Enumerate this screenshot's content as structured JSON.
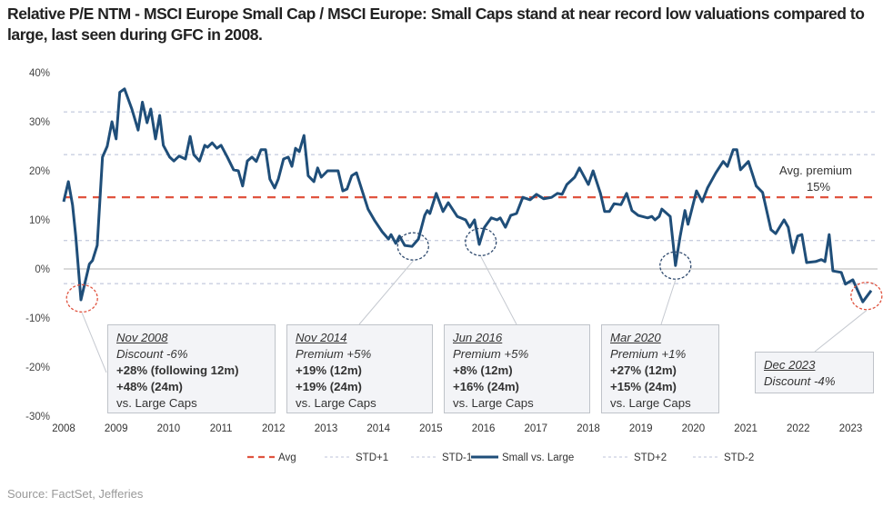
{
  "title": "Relative P/E NTM - MSCI Europe Small Cap / MSCI Europe: Small Caps stand at near record low valuations compared to large, last seen during GFC in 2008.",
  "source": "Source: FactSet, Jefferies",
  "colors": {
    "line": "#1f4e79",
    "avg": "#e0533f",
    "std": "#c9cfe0",
    "zero": "#b5b5b5",
    "circle_red": "#e0533f",
    "circle_navy": "#2f4a6e"
  },
  "annotations": [
    {
      "date": "Nov 2008",
      "level": "Discount -6%",
      "l1": "+28% (following 12m)",
      "l2": "+48% (24m)",
      "l3": "vs. Large Caps"
    },
    {
      "date": "Nov 2014",
      "level": "Premium +5%",
      "l1": "+19% (12m)",
      "l2": "+19% (24m)",
      "l3": "vs. Large Caps"
    },
    {
      "date": "Jun 2016",
      "level": "Premium +5%",
      "l1": "+8% (12m)",
      "l2": "+16% (24m)",
      "l3": "vs. Large Caps"
    },
    {
      "date": "Mar 2020",
      "level": "Premium +1%",
      "l1": "+27% (12m)",
      "l2": "+15% (24m)",
      "l3": "vs. Large Caps"
    },
    {
      "date": "Dec 2023",
      "level": "Discount -4%"
    }
  ],
  "chart_data": {
    "type": "line",
    "title": "Relative P/E NTM - MSCI Europe Small Cap / MSCI Europe",
    "xlabel": "",
    "ylabel": "",
    "xlim": [
      2008,
      2023.6
    ],
    "ylim": [
      -30,
      40
    ],
    "x_ticks": [
      "2008",
      "2009",
      "2010",
      "2011",
      "2012",
      "2013",
      "2014",
      "2015",
      "2016",
      "2017",
      "2018",
      "2019",
      "2020",
      "2021",
      "2022",
      "2023"
    ],
    "y_ticks": [
      "40%",
      "30%",
      "20%",
      "10%",
      "0%",
      "-10%",
      "-20%",
      "-30%"
    ],
    "y_tick_values": [
      40,
      30,
      20,
      10,
      0,
      -10,
      -20,
      -30
    ],
    "avg_label": "Avg. premium",
    "avg_value_label": "15%",
    "reference_lines": [
      {
        "name": "Avg",
        "value": 14.6
      },
      {
        "name": "STD+1",
        "value": 23.3
      },
      {
        "name": "STD-1",
        "value": 5.8
      },
      {
        "name": "STD+2",
        "value": 32.0
      },
      {
        "name": "STD-2",
        "value": -3.0
      }
    ],
    "legend": [
      "Avg",
      "STD+1",
      "STD-1",
      "Small vs. Large",
      "STD+2",
      "STD-2"
    ],
    "legend_placement": "bottom",
    "highlights": [
      {
        "x": 2008.35,
        "y": -6,
        "color": "red"
      },
      {
        "x": 2014.66,
        "y": 4.6,
        "color": "navy"
      },
      {
        "x": 2015.95,
        "y": 5.5,
        "color": "navy"
      },
      {
        "x": 2019.66,
        "y": 0.7,
        "color": "navy"
      },
      {
        "x": 2023.3,
        "y": -5.5,
        "color": "red"
      }
    ],
    "series": [
      {
        "name": "Small vs. Large",
        "x": [
          2008.0,
          2008.09,
          2008.17,
          2008.23,
          2008.33,
          2008.49,
          2008.55,
          2008.64,
          2008.74,
          2008.83,
          2008.92,
          2009.0,
          2009.07,
          2009.16,
          2009.3,
          2009.42,
          2009.5,
          2009.59,
          2009.66,
          2009.75,
          2009.83,
          2009.9,
          2010.02,
          2010.1,
          2010.2,
          2010.32,
          2010.41,
          2010.48,
          2010.59,
          2010.69,
          2010.74,
          2010.83,
          2010.92,
          2011.0,
          2011.12,
          2011.24,
          2011.33,
          2011.41,
          2011.5,
          2011.59,
          2011.67,
          2011.76,
          2011.85,
          2011.93,
          2012.02,
          2012.09,
          2012.19,
          2012.28,
          2012.35,
          2012.42,
          2012.49,
          2012.58,
          2012.66,
          2012.77,
          2012.84,
          2012.91,
          2013.03,
          2013.23,
          2013.32,
          2013.4,
          2013.49,
          2013.58,
          2013.69,
          2013.8,
          2013.93,
          2014.07,
          2014.19,
          2014.24,
          2014.33,
          2014.4,
          2014.5,
          2014.64,
          2014.76,
          2014.88,
          2014.93,
          2014.98,
          2015.1,
          2015.23,
          2015.33,
          2015.5,
          2015.66,
          2015.74,
          2015.83,
          2015.92,
          2016.02,
          2016.15,
          2016.26,
          2016.32,
          2016.42,
          2016.52,
          2016.63,
          2016.75,
          2016.89,
          2017.01,
          2017.15,
          2017.3,
          2017.41,
          2017.5,
          2017.59,
          2017.74,
          2017.83,
          2018.0,
          2018.09,
          2018.23,
          2018.31,
          2018.4,
          2018.49,
          2018.62,
          2018.73,
          2018.83,
          2018.95,
          2019.13,
          2019.21,
          2019.27,
          2019.35,
          2019.4,
          2019.56,
          2019.66,
          2019.75,
          2019.84,
          2019.9,
          2020.06,
          2020.17,
          2020.27,
          2020.43,
          2020.57,
          2020.65,
          2020.76,
          2020.83,
          2020.9,
          2021.05,
          2021.2,
          2021.32,
          2021.48,
          2021.57,
          2021.73,
          2021.81,
          2021.9,
          2021.99,
          2022.07,
          2022.16,
          2022.33,
          2022.44,
          2022.51,
          2022.59,
          2022.66,
          2022.82,
          2022.9,
          2023.04,
          2023.23,
          2023.39
        ],
        "values": [
          13.7,
          17.8,
          13,
          6.7,
          -6.3,
          1,
          1.7,
          4.8,
          22.8,
          25,
          30,
          26.5,
          36,
          36.7,
          32.6,
          28.3,
          34,
          29.8,
          32.6,
          26.5,
          31.3,
          25.2,
          22.8,
          22,
          23,
          22.4,
          27,
          23.3,
          22,
          25.2,
          24.8,
          25.7,
          24.6,
          25.2,
          22.8,
          20.2,
          20,
          16.9,
          22,
          22.8,
          21.9,
          24.3,
          24.3,
          18.3,
          16.5,
          18.3,
          22.4,
          22.8,
          20.9,
          24.6,
          23.9,
          27.2,
          19,
          17.8,
          20.6,
          18.7,
          20,
          20,
          15.9,
          16.3,
          19,
          19.6,
          15.9,
          12.2,
          9.8,
          7.6,
          6.1,
          7,
          5.2,
          6.7,
          4.8,
          4.6,
          6.1,
          10.9,
          11.9,
          11.3,
          15.4,
          11.7,
          13.5,
          10.7,
          10,
          8.5,
          10,
          5,
          8.5,
          10.4,
          10,
          10.4,
          8.5,
          10.9,
          11.3,
          14.6,
          14.1,
          15.2,
          14.3,
          14.6,
          15.4,
          15.2,
          17.2,
          18.7,
          20.6,
          17.2,
          20,
          15.4,
          11.7,
          11.7,
          13.3,
          13.1,
          15.4,
          11.9,
          10.9,
          10.4,
          10.7,
          10,
          10.7,
          12.2,
          10.7,
          0.7,
          6.7,
          11.9,
          9.1,
          15.9,
          13.7,
          16.5,
          19.6,
          21.9,
          20.9,
          24.3,
          24.3,
          20.2,
          21.9,
          16.9,
          15.6,
          8,
          7.2,
          10,
          8.5,
          3.3,
          6.7,
          7,
          1.3,
          1.5,
          1.9,
          1.5,
          7,
          -0.4,
          -0.7,
          -3.1,
          -2.2,
          -6.7,
          -4.4
        ]
      }
    ]
  }
}
